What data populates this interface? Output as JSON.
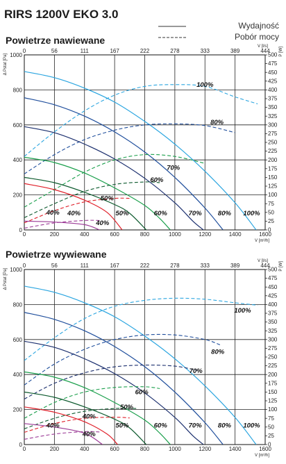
{
  "title": "RIRS 1200V EKO 3.0",
  "legend": {
    "solid": "Wydajność",
    "dashed": "Pobór mocy"
  },
  "colors": {
    "100%": "#2aa5e0",
    "80%": "#1f4e9c",
    "70%": "#1b2f6e",
    "60%": "#1a9f4b",
    "50%": "#0d5a2e",
    "40_upper": "#e0202a",
    "40_lower": "#9b3a96"
  },
  "chart_data": [
    {
      "type": "line",
      "title": "Powietrze nawiewane",
      "xlabel": "V [m³/h]",
      "ylabel": "Δ Pstat [Pa]",
      "x2label": "V [l/s]",
      "y2label": "P [W]",
      "xlim": [
        0,
        1600
      ],
      "ylim": [
        0,
        1000
      ],
      "y2lim": [
        0,
        500
      ],
      "x_ticks": [
        "0",
        "200",
        "400",
        "600",
        "800",
        "1000",
        "1200",
        "1400",
        "1600"
      ],
      "y_ticks": [
        "0",
        "200",
        "400",
        "600",
        "800",
        "1000"
      ],
      "x2_ticks": [
        "0",
        "56",
        "111",
        "167",
        "222",
        "278",
        "333",
        "389",
        "444"
      ],
      "y2_ticks": [
        "0",
        "25",
        "50",
        "75",
        "100",
        "125",
        "150",
        "175",
        "200",
        "225",
        "250",
        "275",
        "300",
        "325",
        "350",
        "375",
        "400",
        "425",
        "450",
        "475",
        "500"
      ],
      "grid": true,
      "series": [
        {
          "name": "100%",
          "color_key": "100%",
          "pressure": [
            [
              0,
              905
            ],
            [
              200,
              870
            ],
            [
              400,
              810
            ],
            [
              600,
              730
            ],
            [
              800,
              620
            ],
            [
              1000,
              490
            ],
            [
              1200,
              335
            ],
            [
              1400,
              155
            ],
            [
              1540,
              0
            ]
          ],
          "power": [
            [
              0,
              210
            ],
            [
              200,
              280
            ],
            [
              400,
              340
            ],
            [
              600,
              385
            ],
            [
              800,
              410
            ],
            [
              1000,
              415
            ],
            [
              1200,
              410
            ],
            [
              1400,
              380
            ],
            [
              1550,
              360
            ]
          ]
        },
        {
          "name": "80%",
          "color_key": "80%",
          "pressure": [
            [
              0,
              755
            ],
            [
              200,
              715
            ],
            [
              400,
              650
            ],
            [
              600,
              560
            ],
            [
              800,
              445
            ],
            [
              1000,
              300
            ],
            [
              1200,
              125
            ],
            [
              1320,
              0
            ]
          ],
          "power": [
            [
              0,
              160
            ],
            [
              200,
              215
            ],
            [
              400,
              258
            ],
            [
              600,
              285
            ],
            [
              800,
              300
            ],
            [
              1000,
              303
            ],
            [
              1200,
              298
            ],
            [
              1400,
              278
            ]
          ]
        },
        {
          "name": "70%",
          "color_key": "70%",
          "pressure": [
            [
              0,
              590
            ],
            [
              200,
              555
            ],
            [
              400,
              490
            ],
            [
              600,
              405
            ],
            [
              800,
              295
            ],
            [
              1000,
              155
            ],
            [
              1120,
              50
            ],
            [
              1190,
              0
            ]
          ],
          "label_at": [
            950,
            350
          ]
        },
        {
          "name": "60%",
          "color_key": "60%",
          "pressure": [
            [
              0,
              415
            ],
            [
              200,
              385
            ],
            [
              400,
              325
            ],
            [
              600,
              240
            ],
            [
              800,
              140
            ],
            [
              900,
              65
            ],
            [
              970,
              0
            ]
          ],
          "power": [
            [
              0,
              65
            ],
            [
              200,
              115
            ],
            [
              400,
              165
            ],
            [
              600,
              200
            ],
            [
              800,
              215
            ],
            [
              1000,
              210
            ],
            [
              1200,
              190
            ]
          ],
          "label_at": [
            870,
            290
          ]
        },
        {
          "name": "50%",
          "color_key": "50%",
          "pressure": [
            [
              0,
              300
            ],
            [
              200,
              270
            ],
            [
              400,
              215
            ],
            [
              600,
              145
            ],
            [
              700,
              95
            ],
            [
              810,
              0
            ]
          ],
          "power": [
            [
              0,
              35
            ],
            [
              200,
              75
            ],
            [
              400,
              110
            ],
            [
              600,
              130
            ],
            [
              800,
              137
            ],
            [
              900,
              135
            ]
          ],
          "label_at": [
            520,
            80
          ]
        },
        {
          "name": "40%",
          "color_key": "40_upper",
          "pressure": [
            [
              0,
              265
            ],
            [
              200,
              230
            ],
            [
              400,
              170
            ],
            [
              550,
              100
            ],
            [
              650,
              0
            ]
          ],
          "power": [
            [
              0,
              20
            ],
            [
              200,
              55
            ],
            [
              400,
              80
            ],
            [
              600,
              90
            ],
            [
              700,
              90
            ]
          ],
          "label_at": [
            490,
            180
          ]
        },
        {
          "name": "40%",
          "color_key": "40_lower",
          "pressure": [
            [
              0,
              50
            ],
            [
              200,
              45
            ],
            [
              400,
              30
            ],
            [
              500,
              0
            ]
          ],
          "power": [
            [
              0,
              5
            ],
            [
              200,
              20
            ],
            [
              400,
              27
            ],
            [
              500,
              27
            ]
          ],
          "label_at": [
            350,
            100
          ]
        }
      ],
      "labels": [
        {
          "text": "100%",
          "x": 1200,
          "y": 830
        },
        {
          "text": "80%",
          "x": 1280,
          "y": 615
        },
        {
          "text": "70%",
          "x": 990,
          "y": 355
        },
        {
          "text": "60%",
          "x": 880,
          "y": 285
        },
        {
          "text": "50%",
          "x": 550,
          "y": 180
        },
        {
          "text": "40%",
          "x": 330,
          "y": 95
        },
        {
          "text": "40%",
          "x": 520,
          "y": 40
        },
        {
          "text": "40%",
          "x": 190,
          "y": 100
        },
        {
          "text": "50%",
          "x": 650,
          "y": 95
        },
        {
          "text": "60%",
          "x": 905,
          "y": 95
        },
        {
          "text": "70%",
          "x": 1135,
          "y": 95
        },
        {
          "text": "80%",
          "x": 1330,
          "y": 95
        },
        {
          "text": "100%",
          "x": 1510,
          "y": 95
        }
      ]
    },
    {
      "type": "line",
      "title": "Powietrze wywiewane",
      "xlabel": "V [m³/h]",
      "ylabel": "Δ Pstat [Pa]",
      "x2label": "V [l/s]",
      "y2label": "P [W]",
      "xlim": [
        0,
        1600
      ],
      "ylim": [
        0,
        1000
      ],
      "y2lim": [
        0,
        500
      ],
      "x_ticks": [
        "0",
        "200",
        "400",
        "600",
        "800",
        "1000",
        "1200",
        "1400",
        "1600"
      ],
      "y_ticks": [
        "0",
        "200",
        "400",
        "600",
        "800",
        "1000"
      ],
      "x2_ticks": [
        "0",
        "56",
        "111",
        "167",
        "222",
        "278",
        "333",
        "389",
        "444"
      ],
      "y2_ticks": [
        "0",
        "25",
        "50",
        "75",
        "100",
        "125",
        "150",
        "175",
        "200",
        "225",
        "250",
        "275",
        "300",
        "325",
        "350",
        "375",
        "400",
        "425",
        "450",
        "475",
        "500"
      ],
      "grid": true,
      "series": [
        {
          "name": "100%",
          "color_key": "100%",
          "pressure": [
            [
              0,
              905
            ],
            [
              200,
              870
            ],
            [
              400,
              810
            ],
            [
              600,
              730
            ],
            [
              800,
              620
            ],
            [
              1000,
              490
            ],
            [
              1200,
              335
            ],
            [
              1400,
              155
            ],
            [
              1540,
              0
            ]
          ],
          "power": [
            [
              0,
              240
            ],
            [
              200,
              305
            ],
            [
              400,
              360
            ],
            [
              600,
              395
            ],
            [
              800,
              412
            ],
            [
              1000,
              418
            ],
            [
              1200,
              415
            ],
            [
              1400,
              405
            ],
            [
              1550,
              398
            ]
          ]
        },
        {
          "name": "80%",
          "color_key": "80%",
          "pressure": [
            [
              0,
              755
            ],
            [
              200,
              715
            ],
            [
              400,
              650
            ],
            [
              600,
              560
            ],
            [
              800,
              445
            ],
            [
              1000,
              300
            ],
            [
              1200,
              125
            ],
            [
              1320,
              0
            ]
          ],
          "power": [
            [
              0,
              170
            ],
            [
              200,
              230
            ],
            [
              400,
              272
            ],
            [
              600,
              300
            ],
            [
              800,
              313
            ],
            [
              1000,
              313
            ],
            [
              1200,
              300
            ],
            [
              1300,
              285
            ]
          ]
        },
        {
          "name": "70%",
          "color_key": "70%",
          "pressure": [
            [
              0,
              590
            ],
            [
              200,
              555
            ],
            [
              400,
              490
            ],
            [
              600,
              405
            ],
            [
              800,
              295
            ],
            [
              1000,
              155
            ],
            [
              1120,
              50
            ],
            [
              1190,
              0
            ]
          ],
          "power": [
            [
              0,
              130
            ],
            [
              200,
              175
            ],
            [
              400,
              205
            ],
            [
              600,
              222
            ],
            [
              800,
              227
            ],
            [
              1000,
              224
            ],
            [
              1150,
              212
            ]
          ]
        },
        {
          "name": "60%",
          "color_key": "60%",
          "pressure": [
            [
              0,
              415
            ],
            [
              200,
              385
            ],
            [
              400,
              325
            ],
            [
              600,
              240
            ],
            [
              800,
              140
            ],
            [
              900,
              65
            ],
            [
              970,
              0
            ]
          ],
          "power": [
            [
              0,
              75
            ],
            [
              200,
              120
            ],
            [
              400,
              150
            ],
            [
              600,
              163
            ],
            [
              800,
              165
            ],
            [
              900,
              160
            ]
          ]
        },
        {
          "name": "50%",
          "color_key": "50%",
          "pressure": [
            [
              0,
              300
            ],
            [
              200,
              270
            ],
            [
              400,
              215
            ],
            [
              600,
              145
            ],
            [
              700,
              95
            ],
            [
              810,
              0
            ]
          ],
          "power": [
            [
              0,
              45
            ],
            [
              200,
              75
            ],
            [
              400,
              95
            ],
            [
              600,
              103
            ],
            [
              750,
              103
            ]
          ]
        },
        {
          "name": "40%",
          "color_key": "40_upper",
          "pressure": [
            [
              0,
              215
            ],
            [
              200,
              185
            ],
            [
              400,
              130
            ],
            [
              550,
              60
            ],
            [
              620,
              0
            ]
          ],
          "power": [
            [
              0,
              35
            ],
            [
              200,
              60
            ],
            [
              400,
              75
            ],
            [
              600,
              78
            ],
            [
              700,
              76
            ]
          ]
        },
        {
          "name": "40%",
          "color_key": "40_lower",
          "pressure": [
            [
              0,
              120
            ],
            [
              200,
              100
            ],
            [
              400,
              65
            ],
            [
              520,
              0
            ]
          ],
          "power": [
            [
              0,
              15
            ],
            [
              200,
              30
            ],
            [
              400,
              37
            ],
            [
              500,
              36
            ]
          ]
        }
      ],
      "labels": [
        {
          "text": "100%",
          "x": 1450,
          "y": 765
        },
        {
          "text": "80%",
          "x": 1285,
          "y": 530
        },
        {
          "text": "70%",
          "x": 1140,
          "y": 420
        },
        {
          "text": "60%",
          "x": 780,
          "y": 300
        },
        {
          "text": "50%",
          "x": 680,
          "y": 215
        },
        {
          "text": "40%",
          "x": 430,
          "y": 160
        },
        {
          "text": "40%",
          "x": 430,
          "y": 60
        },
        {
          "text": "40%",
          "x": 190,
          "y": 110
        },
        {
          "text": "50%",
          "x": 650,
          "y": 110
        },
        {
          "text": "60%",
          "x": 905,
          "y": 110
        },
        {
          "text": "70%",
          "x": 1135,
          "y": 110
        },
        {
          "text": "80%",
          "x": 1330,
          "y": 110
        },
        {
          "text": "100%",
          "x": 1510,
          "y": 110
        }
      ]
    }
  ]
}
